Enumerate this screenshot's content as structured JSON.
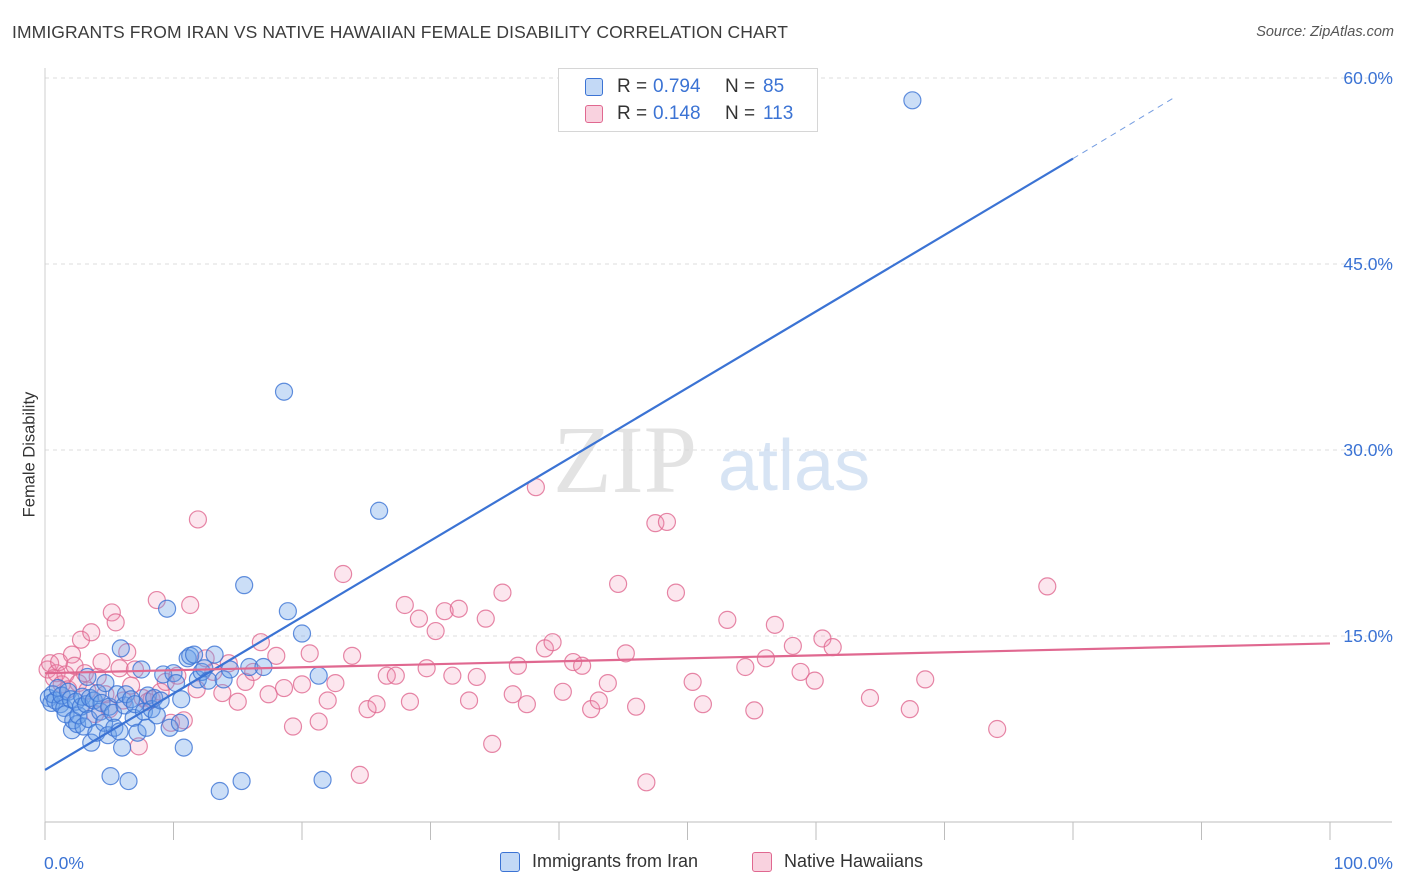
{
  "title": "IMMIGRANTS FROM IRAN VS NATIVE HAWAIIAN FEMALE DISABILITY CORRELATION CHART",
  "source": "Source: ZipAtlas.com",
  "watermark": {
    "zip": "ZIP",
    "atlas": "atlas"
  },
  "legend": {
    "rows": [
      {
        "r_label": "R =",
        "r_value": "0.794",
        "n_label": "N =",
        "n_value": "85",
        "color": "#6aa0e8"
      },
      {
        "r_label": "R =",
        "r_value": "0.148",
        "n_label": "N =",
        "n_value": "113",
        "color": "#f08fb0"
      }
    ]
  },
  "bottom_legend": [
    "Immigrants from Iran",
    "Native Hawaiians"
  ],
  "chart_data": {
    "type": "scatter",
    "title": "IMMIGRANTS FROM IRAN VS NATIVE HAWAIIAN FEMALE DISABILITY CORRELATION CHART",
    "xlabel": "",
    "ylabel": "Female Disability",
    "xlim": [
      0,
      100
    ],
    "ylim": [
      0,
      60
    ],
    "x_tick_labels": [
      "0.0%",
      "100.0%"
    ],
    "y_ticks": [
      15,
      30,
      45,
      60
    ],
    "y_tick_labels": [
      "15.0%",
      "30.0%",
      "45.0%",
      "60.0%"
    ],
    "grid": "horizontal dashed",
    "legend_position": "top-center",
    "series": [
      {
        "name": "Immigrants from Iran",
        "color": "#6aa0e8",
        "stroke": "#3b73d4",
        "trend": {
          "x0": 0,
          "y0": 4.2,
          "x1": 80,
          "y1": 53.5,
          "dash_to_x": 88,
          "dash_to_y": 58.5
        },
        "points": [
          [
            0.3,
            10.0
          ],
          [
            0.5,
            9.6
          ],
          [
            0.6,
            10.3
          ],
          [
            0.8,
            9.8
          ],
          [
            1.0,
            10.8
          ],
          [
            1.2,
            9.5
          ],
          [
            1.3,
            10.2
          ],
          [
            1.5,
            9.2
          ],
          [
            1.6,
            8.7
          ],
          [
            1.8,
            10.5
          ],
          [
            2.0,
            9.9
          ],
          [
            2.1,
            7.4
          ],
          [
            2.2,
            8.2
          ],
          [
            2.4,
            9.7
          ],
          [
            2.5,
            7.9
          ],
          [
            2.6,
            8.6
          ],
          [
            2.8,
            9.3
          ],
          [
            2.9,
            10.1
          ],
          [
            3.0,
            7.7
          ],
          [
            3.2,
            9.5
          ],
          [
            3.3,
            11.7
          ],
          [
            3.4,
            8.3
          ],
          [
            3.5,
            10.0
          ],
          [
            3.6,
            6.4
          ],
          [
            3.8,
            9.8
          ],
          [
            4.0,
            7.2
          ],
          [
            4.1,
            10.4
          ],
          [
            4.3,
            8.9
          ],
          [
            4.4,
            9.6
          ],
          [
            4.6,
            8.0
          ],
          [
            4.7,
            11.2
          ],
          [
            4.9,
            7.0
          ],
          [
            5.0,
            9.3
          ],
          [
            5.1,
            3.7
          ],
          [
            5.3,
            8.8
          ],
          [
            5.4,
            7.6
          ],
          [
            5.6,
            10.3
          ],
          [
            5.8,
            7.3
          ],
          [
            5.9,
            14.0
          ],
          [
            6.0,
            6.0
          ],
          [
            6.2,
            9.4
          ],
          [
            6.3,
            10.3
          ],
          [
            6.5,
            3.3
          ],
          [
            6.7,
            9.9
          ],
          [
            6.9,
            8.4
          ],
          [
            7.0,
            9.5
          ],
          [
            7.2,
            7.2
          ],
          [
            7.5,
            12.3
          ],
          [
            7.7,
            8.9
          ],
          [
            7.9,
            7.6
          ],
          [
            8.0,
            10.2
          ],
          [
            8.3,
            9.1
          ],
          [
            8.5,
            10.0
          ],
          [
            8.7,
            8.6
          ],
          [
            9.0,
            9.8
          ],
          [
            9.2,
            11.9
          ],
          [
            9.5,
            17.2
          ],
          [
            9.7,
            7.6
          ],
          [
            10.0,
            12.0
          ],
          [
            10.2,
            11.2
          ],
          [
            10.5,
            8.0
          ],
          [
            10.6,
            9.9
          ],
          [
            10.8,
            6.0
          ],
          [
            11.1,
            13.2
          ],
          [
            11.3,
            13.4
          ],
          [
            11.6,
            13.5
          ],
          [
            11.9,
            11.5
          ],
          [
            12.2,
            12.1
          ],
          [
            12.4,
            12.4
          ],
          [
            12.7,
            11.4
          ],
          [
            13.2,
            13.5
          ],
          [
            13.6,
            2.5
          ],
          [
            13.9,
            11.5
          ],
          [
            14.4,
            12.3
          ],
          [
            15.3,
            3.3
          ],
          [
            15.5,
            19.1
          ],
          [
            15.9,
            12.5
          ],
          [
            17.0,
            12.5
          ],
          [
            18.6,
            34.7
          ],
          [
            18.9,
            17.0
          ],
          [
            20.0,
            15.2
          ],
          [
            21.3,
            11.8
          ],
          [
            21.6,
            3.4
          ],
          [
            26.0,
            25.1
          ],
          [
            67.5,
            58.2
          ]
        ]
      },
      {
        "name": "Native Hawaiians",
        "color": "#f08fb0",
        "stroke": "#e06890",
        "trend": {
          "x0": 0,
          "y0": 12.0,
          "x1": 100,
          "y1": 14.4
        },
        "points": [
          [
            0.2,
            12.3
          ],
          [
            0.4,
            12.8
          ],
          [
            0.7,
            11.6
          ],
          [
            0.9,
            12.0
          ],
          [
            1.1,
            12.9
          ],
          [
            1.3,
            11.1
          ],
          [
            1.6,
            11.9
          ],
          [
            1.8,
            10.7
          ],
          [
            2.1,
            13.5
          ],
          [
            2.3,
            12.6
          ],
          [
            2.6,
            11.2
          ],
          [
            2.8,
            14.7
          ],
          [
            3.1,
            12.0
          ],
          [
            3.3,
            10.6
          ],
          [
            3.6,
            15.3
          ],
          [
            3.9,
            8.7
          ],
          [
            4.1,
            11.7
          ],
          [
            4.4,
            12.9
          ],
          [
            4.7,
            10.3
          ],
          [
            5.0,
            9.1
          ],
          [
            5.2,
            16.9
          ],
          [
            5.5,
            16.1
          ],
          [
            5.8,
            12.4
          ],
          [
            6.1,
            9.8
          ],
          [
            6.4,
            13.7
          ],
          [
            6.7,
            11.0
          ],
          [
            7.0,
            12.3
          ],
          [
            7.3,
            6.1
          ],
          [
            7.6,
            10.0
          ],
          [
            8.0,
            9.7
          ],
          [
            8.3,
            9.9
          ],
          [
            8.7,
            17.9
          ],
          [
            9.0,
            10.5
          ],
          [
            9.4,
            11.3
          ],
          [
            9.8,
            8.0
          ],
          [
            10.3,
            11.8
          ],
          [
            10.8,
            8.2
          ],
          [
            11.3,
            17.5
          ],
          [
            11.8,
            10.7
          ],
          [
            11.9,
            24.4
          ],
          [
            12.5,
            13.2
          ],
          [
            13.1,
            12.1
          ],
          [
            13.8,
            10.4
          ],
          [
            14.3,
            12.8
          ],
          [
            15.0,
            9.7
          ],
          [
            15.6,
            11.3
          ],
          [
            16.2,
            12.1
          ],
          [
            16.8,
            14.5
          ],
          [
            17.4,
            10.3
          ],
          [
            18.0,
            13.4
          ],
          [
            18.6,
            10.8
          ],
          [
            19.3,
            7.7
          ],
          [
            20.0,
            11.1
          ],
          [
            20.6,
            13.6
          ],
          [
            21.3,
            8.1
          ],
          [
            22.0,
            9.8
          ],
          [
            22.6,
            11.2
          ],
          [
            23.2,
            20.0
          ],
          [
            23.9,
            13.4
          ],
          [
            24.5,
            3.8
          ],
          [
            25.1,
            9.1
          ],
          [
            25.8,
            9.5
          ],
          [
            26.6,
            11.8
          ],
          [
            27.3,
            11.8
          ],
          [
            28.0,
            17.5
          ],
          [
            28.4,
            9.7
          ],
          [
            29.1,
            16.4
          ],
          [
            29.7,
            12.4
          ],
          [
            30.4,
            15.4
          ],
          [
            31.1,
            17.0
          ],
          [
            31.7,
            11.8
          ],
          [
            32.2,
            17.2
          ],
          [
            33.0,
            9.8
          ],
          [
            33.6,
            11.7
          ],
          [
            34.3,
            16.4
          ],
          [
            34.8,
            6.3
          ],
          [
            35.6,
            18.5
          ],
          [
            36.4,
            10.3
          ],
          [
            36.8,
            12.6
          ],
          [
            37.5,
            9.5
          ],
          [
            38.2,
            27.0
          ],
          [
            38.9,
            14.0
          ],
          [
            39.5,
            14.5
          ],
          [
            40.3,
            10.5
          ],
          [
            41.1,
            12.9
          ],
          [
            41.8,
            12.6
          ],
          [
            42.5,
            9.1
          ],
          [
            43.1,
            9.8
          ],
          [
            43.8,
            11.2
          ],
          [
            44.6,
            19.2
          ],
          [
            45.2,
            13.6
          ],
          [
            46.0,
            9.3
          ],
          [
            46.8,
            3.2
          ],
          [
            47.5,
            24.1
          ],
          [
            48.4,
            24.2
          ],
          [
            49.1,
            18.5
          ],
          [
            50.4,
            11.3
          ],
          [
            51.2,
            9.5
          ],
          [
            53.1,
            16.3
          ],
          [
            54.5,
            12.5
          ],
          [
            55.2,
            9.0
          ],
          [
            56.1,
            13.2
          ],
          [
            56.8,
            15.9
          ],
          [
            58.2,
            14.2
          ],
          [
            58.8,
            12.1
          ],
          [
            59.9,
            11.4
          ],
          [
            60.5,
            14.8
          ],
          [
            61.3,
            14.1
          ],
          [
            64.2,
            10.0
          ],
          [
            67.3,
            9.1
          ],
          [
            68.5,
            11.5
          ],
          [
            74.1,
            7.5
          ],
          [
            78.0,
            19.0
          ]
        ]
      }
    ]
  }
}
